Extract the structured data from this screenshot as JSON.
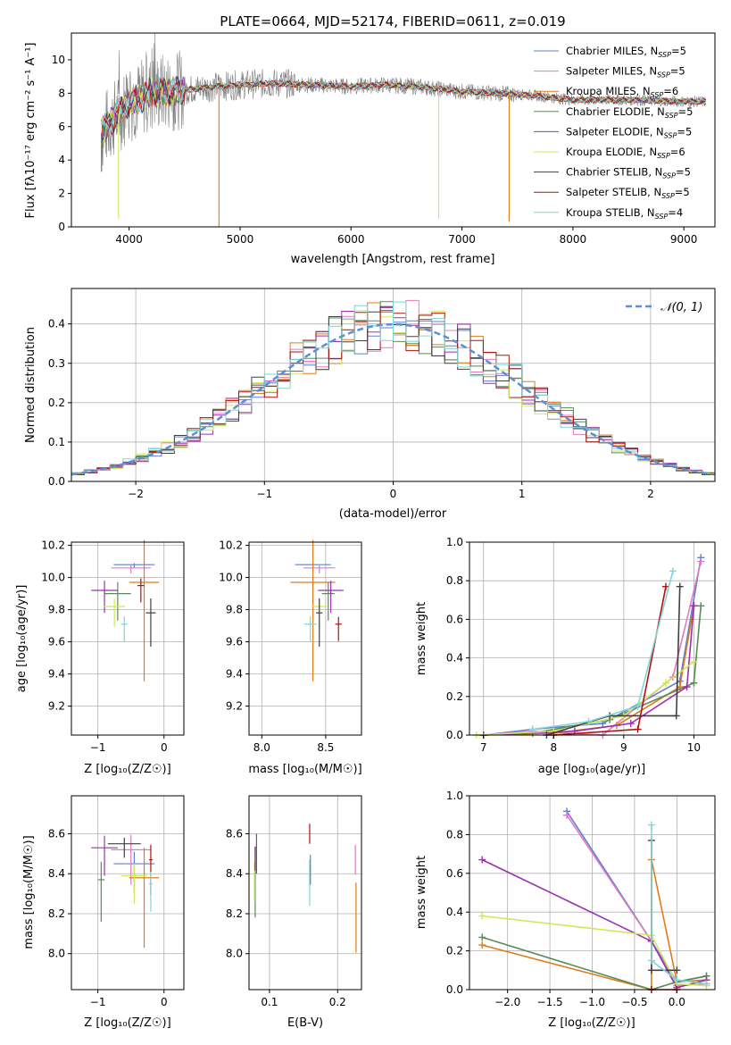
{
  "colors": [
    "#5b7fd6",
    "#e07bbf",
    "#e07b1a",
    "#5a8a5a",
    "#9b30b0",
    "#cde85a",
    "#404040",
    "#b01010",
    "#7ed6d6"
  ],
  "chart_data": [
    {
      "id": "spectrum",
      "type": "line",
      "title": "PLATE=0664, MJD=52174, FIBERID=0611, z=0.019",
      "xlabel": "wavelength [Angstrom, rest frame]",
      "ylabel": "Flux [fλ10⁻¹⁷ erg cm⁻² s⁻¹ A⁻¹]",
      "xlim": [
        3480,
        9280
      ],
      "ylim": [
        0,
        11.6
      ],
      "xticks": [
        "4000",
        "5000",
        "6000",
        "7000",
        "8000",
        "9000"
      ],
      "yticks": [
        "0",
        "2",
        "4",
        "6",
        "8",
        "10"
      ],
      "grid": false,
      "legend_position": "top-right",
      "legend": [
        {
          "base": "Chabrier MILES, N",
          "sub": "SSP",
          "tail": "=5"
        },
        {
          "base": "Salpeter MILES, N",
          "sub": "SSP",
          "tail": "=5"
        },
        {
          "base": "Kroupa MILES, N",
          "sub": "SSP",
          "tail": "=6"
        },
        {
          "base": "Chabrier ELODIE, N",
          "sub": "SSP",
          "tail": "=5"
        },
        {
          "base": "Salpeter ELODIE, N",
          "sub": "SSP",
          "tail": "=5"
        },
        {
          "base": "Kroupa ELODIE, N",
          "sub": "SSP",
          "tail": "=6"
        },
        {
          "base": "Chabrier STELIB, N",
          "sub": "SSP",
          "tail": "=5"
        },
        {
          "base": "Salpeter STELIB, N",
          "sub": "SSP",
          "tail": "=5"
        },
        {
          "base": "Kroupa STELIB, N",
          "sub": "SSP",
          "tail": "=4"
        }
      ],
      "continuum": {
        "x": [
          3750,
          3850,
          4000,
          4200,
          4500,
          4800,
          5000,
          5300,
          5600,
          6000,
          6300,
          6600,
          7000,
          7300,
          7600,
          8000,
          8500,
          9000,
          9200
        ],
        "y": [
          5.6,
          6.4,
          7.4,
          8.0,
          8.2,
          8.4,
          8.5,
          8.6,
          8.5,
          8.4,
          8.5,
          8.4,
          8.1,
          8.0,
          7.9,
          7.6,
          7.6,
          7.5,
          7.5
        ]
      }
    },
    {
      "id": "residuals",
      "type": "line",
      "xlabel": "(data-model)/error",
      "ylabel": "Normed distribution",
      "xlim": [
        -2.5,
        2.5
      ],
      "ylim": [
        0,
        0.49
      ],
      "xticks": [
        "−2",
        "−1",
        "0",
        "1",
        "2"
      ],
      "yticks": [
        "0.0",
        "0.1",
        "0.2",
        "0.3",
        "0.4"
      ],
      "grid": true,
      "legend_position": "top-right",
      "legend_label": "𝒩(0, 1)",
      "reference_curve": "standard normal"
    },
    {
      "id": "age_vs_Z",
      "type": "scatter",
      "xlabel": "Z [log₁₀(Z/Z☉)]",
      "ylabel": "age  [log₁₀(age/yr)]",
      "xlim": [
        -1.4,
        0.3
      ],
      "ylim": [
        9.02,
        10.22
      ],
      "xticks": [
        "−1",
        "0"
      ],
      "yticks": [
        "9.2",
        "9.4",
        "9.6",
        "9.8",
        "10.0",
        "10.2"
      ],
      "points": [
        {
          "s": 0,
          "x": -0.45,
          "y": 10.08,
          "xe": 0.62,
          "ye": 0.03
        },
        {
          "s": 1,
          "x": -0.5,
          "y": 10.06,
          "xe": 0.6,
          "ye": 0.05
        },
        {
          "s": 2,
          "x": -0.3,
          "y": 9.97,
          "xe": 0.45,
          "ye": 0.88
        },
        {
          "s": 3,
          "x": -0.7,
          "y": 9.9,
          "xe": 0.4,
          "ye": 0.24
        },
        {
          "s": 4,
          "x": -0.9,
          "y": 9.92,
          "xe": 0.4,
          "ye": 0.2
        },
        {
          "s": 5,
          "x": -0.75,
          "y": 9.82,
          "xe": 0.32,
          "ye": 0.18
        },
        {
          "s": 6,
          "x": -0.2,
          "y": 9.78,
          "xe": 0.15,
          "ye": 0.3
        },
        {
          "s": 7,
          "x": -0.35,
          "y": 9.95,
          "xe": 0.1,
          "ye": 0.15
        },
        {
          "s": 8,
          "x": -0.6,
          "y": 9.71,
          "xe": 0.1,
          "ye": 0.16
        }
      ]
    },
    {
      "id": "age_vs_mass",
      "type": "scatter",
      "xlabel": "mass [log₁₀(M/M☉)]",
      "ylabel": "",
      "xlim": [
        7.9,
        8.78
      ],
      "ylim": [
        9.02,
        10.22
      ],
      "xticks": [
        "8.0",
        "8.5"
      ],
      "yticks": [
        "9.2",
        "9.4",
        "9.6",
        "9.8",
        "10.0",
        "10.2"
      ],
      "points": [
        {
          "s": 0,
          "x": 8.4,
          "y": 10.08,
          "xe": 0.28,
          "ye": 0.03
        },
        {
          "s": 1,
          "x": 8.45,
          "y": 10.06,
          "xe": 0.25,
          "ye": 0.05
        },
        {
          "s": 2,
          "x": 8.4,
          "y": 9.97,
          "xe": 0.35,
          "ye": 0.88
        },
        {
          "s": 3,
          "x": 8.52,
          "y": 9.9,
          "xe": 0.1,
          "ye": 0.24
        },
        {
          "s": 4,
          "x": 8.54,
          "y": 9.92,
          "xe": 0.2,
          "ye": 0.2
        },
        {
          "s": 5,
          "x": 8.45,
          "y": 9.82,
          "xe": 0.12,
          "ye": 0.18
        },
        {
          "s": 6,
          "x": 8.45,
          "y": 9.78,
          "xe": 0.05,
          "ye": 0.3
        },
        {
          "s": 7,
          "x": 8.6,
          "y": 9.71,
          "xe": 0.05,
          "ye": 0.15
        },
        {
          "s": 8,
          "x": 8.38,
          "y": 9.71,
          "xe": 0.1,
          "ye": 0.16
        }
      ]
    },
    {
      "id": "mass_weight_vs_age",
      "type": "line",
      "xlabel": "age  [log₁₀(age/yr)]",
      "ylabel": "mass weight",
      "xlim": [
        6.8,
        10.3
      ],
      "ylim": [
        0,
        1.0
      ],
      "xticks": [
        "7",
        "8",
        "9",
        "10"
      ],
      "yticks": [
        "0.0",
        "0.2",
        "0.4",
        "0.6",
        "0.8",
        "1.0"
      ],
      "series": [
        {
          "s": 0,
          "x": [
            7.0,
            7.7,
            8.7,
            9.8,
            10.1
          ],
          "y": [
            0.0,
            0.03,
            0.06,
            0.28,
            0.92
          ]
        },
        {
          "s": 1,
          "x": [
            7.0,
            7.7,
            8.7,
            9.7,
            10.1
          ],
          "y": [
            0.0,
            0.02,
            0.0,
            0.3,
            0.9
          ]
        },
        {
          "s": 2,
          "x": [
            7.0,
            8.0,
            8.9,
            9.8,
            10.0
          ],
          "y": [
            0.0,
            0.01,
            0.05,
            0.25,
            0.67
          ]
        },
        {
          "s": 3,
          "x": [
            7.0,
            7.7,
            8.8,
            10.0,
            10.1
          ],
          "y": [
            0.0,
            0.01,
            0.08,
            0.27,
            0.67
          ]
        },
        {
          "s": 4,
          "x": [
            7.0,
            8.3,
            9.1,
            9.9,
            10.0
          ],
          "y": [
            0.0,
            0.02,
            0.06,
            0.25,
            0.67
          ]
        },
        {
          "s": 5,
          "x": [
            6.9,
            8.0,
            9.0,
            9.6,
            10.0
          ],
          "y": [
            0.0,
            0.02,
            0.1,
            0.27,
            0.38
          ]
        },
        {
          "s": 6,
          "x": [
            7.9,
            8.8,
            9.75,
            9.8
          ],
          "y": [
            0.0,
            0.1,
            0.1,
            0.77
          ]
        },
        {
          "s": 7,
          "x": [
            8.0,
            9.2,
            9.6
          ],
          "y": [
            0.0,
            0.03,
            0.77
          ]
        },
        {
          "s": 8,
          "x": [
            7.7,
            8.5,
            9.2,
            9.7
          ],
          "y": [
            0.03,
            0.07,
            0.15,
            0.85
          ]
        }
      ]
    },
    {
      "id": "mass_vs_Z",
      "type": "scatter",
      "xlabel": "Z [log₁₀(Z/Z☉)]",
      "ylabel": "mass [log₁₀(M/M☉)]",
      "xlim": [
        -1.4,
        0.3
      ],
      "ylim": [
        7.82,
        8.79
      ],
      "xticks": [
        "−1",
        "0"
      ],
      "yticks": [
        "8.0",
        "8.2",
        "8.4",
        "8.6"
      ],
      "points": [
        {
          "s": 0,
          "x": -0.45,
          "y": 8.45,
          "xe": 0.62,
          "ye": 0.2
        },
        {
          "s": 1,
          "x": -0.5,
          "y": 8.52,
          "xe": 0.6,
          "ye": 0.25
        },
        {
          "s": 2,
          "x": -0.3,
          "y": 8.38,
          "xe": 0.45,
          "ye": 0.5
        },
        {
          "s": 3,
          "x": -0.95,
          "y": 8.37,
          "xe": 0.1,
          "ye": 0.3
        },
        {
          "s": 4,
          "x": -0.9,
          "y": 8.53,
          "xe": 0.4,
          "ye": 0.2
        },
        {
          "s": 5,
          "x": -0.45,
          "y": 8.39,
          "xe": 0.4,
          "ye": 0.2
        },
        {
          "s": 6,
          "x": -0.6,
          "y": 8.55,
          "xe": 0.5,
          "ye": 0.1
        },
        {
          "s": 7,
          "x": -0.2,
          "y": 8.47,
          "xe": 0.05,
          "ye": 0.25
        },
        {
          "s": 8,
          "x": -0.2,
          "y": 8.35,
          "xe": 0.05,
          "ye": 0.2
        }
      ]
    },
    {
      "id": "mass_vs_EBV",
      "type": "scatter",
      "xlabel": "E(B-V)",
      "ylabel": "",
      "xlim": [
        0.07,
        0.235
      ],
      "ylim": [
        7.82,
        8.79
      ],
      "xticks": [
        "0.1",
        "0.2"
      ],
      "yticks": [
        "8.0",
        "8.2",
        "8.4",
        "8.6"
      ],
      "points": [
        {
          "s": 3,
          "x": 0.079,
          "y": 8.37,
          "xe": 0,
          "ye": 0.27
        },
        {
          "s": 4,
          "x": 0.081,
          "y": 8.54,
          "xe": 0,
          "ye": 0.2
        },
        {
          "s": 5,
          "x": 0.078,
          "y": 8.4,
          "xe": 0,
          "ye": 0.2
        },
        {
          "s": 6,
          "x": 0.079,
          "y": 8.5,
          "xe": 0,
          "ye": 0.12
        },
        {
          "s": 7,
          "x": 0.159,
          "y": 8.62,
          "xe": 0,
          "ye": 0.1
        },
        {
          "s": 8,
          "x": 0.159,
          "y": 8.4,
          "xe": 0,
          "ye": 0.23
        },
        {
          "s": 0,
          "x": 0.16,
          "y": 8.45,
          "xe": 0,
          "ye": 0.15
        },
        {
          "s": 1,
          "x": 0.226,
          "y": 8.5,
          "xe": 0,
          "ye": 0.15
        },
        {
          "s": 2,
          "x": 0.227,
          "y": 8.25,
          "xe": 0,
          "ye": 0.35
        }
      ]
    },
    {
      "id": "mass_weight_vs_Z",
      "type": "line",
      "xlabel": "Z [log₁₀(Z/Z☉)]",
      "ylabel": "mass weight",
      "xlim": [
        -2.45,
        0.45
      ],
      "ylim": [
        0,
        1.0
      ],
      "xticks": [
        "−2.0",
        "−1.5",
        "−1.0",
        "−0.5",
        "0.0"
      ],
      "yticks": [
        "0.0",
        "0.2",
        "0.4",
        "0.6",
        "0.8",
        "1.0"
      ],
      "series": [
        {
          "s": 0,
          "x": [
            -1.3,
            -0.3,
            0.0,
            0.35
          ],
          "y": [
            0.92,
            0.25,
            0.04,
            0.07
          ]
        },
        {
          "s": 1,
          "x": [
            -1.3,
            -0.3,
            0.0,
            0.35
          ],
          "y": [
            0.9,
            0.25,
            0.02,
            0.03
          ]
        },
        {
          "s": 2,
          "x": [
            -2.3,
            -0.3,
            -0.3,
            0.0,
            0.35
          ],
          "y": [
            0.23,
            0.0,
            0.67,
            0.04,
            0.05
          ]
        },
        {
          "s": 3,
          "x": [
            -2.3,
            -0.3,
            0.0,
            0.35
          ],
          "y": [
            0.27,
            0.0,
            0.04,
            0.07
          ]
        },
        {
          "s": 4,
          "x": [
            -2.3,
            -0.3,
            0.0,
            0.35
          ],
          "y": [
            0.67,
            0.25,
            0.01,
            0.05
          ]
        },
        {
          "s": 5,
          "x": [
            -2.3,
            -0.3,
            0.0,
            0.35
          ],
          "y": [
            0.38,
            0.28,
            0.03,
            0.02
          ]
        },
        {
          "s": 6,
          "x": [
            -0.3,
            -0.3,
            0.0
          ],
          "y": [
            0.77,
            0.1,
            0.1
          ]
        },
        {
          "s": 7,
          "x": [
            -0.3,
            0.0
          ],
          "y": [
            0.0,
            0.0
          ]
        },
        {
          "s": 8,
          "x": [
            -0.3,
            -0.3,
            0.0,
            0.35
          ],
          "y": [
            0.85,
            0.15,
            0.05,
            0.03
          ]
        }
      ]
    }
  ]
}
